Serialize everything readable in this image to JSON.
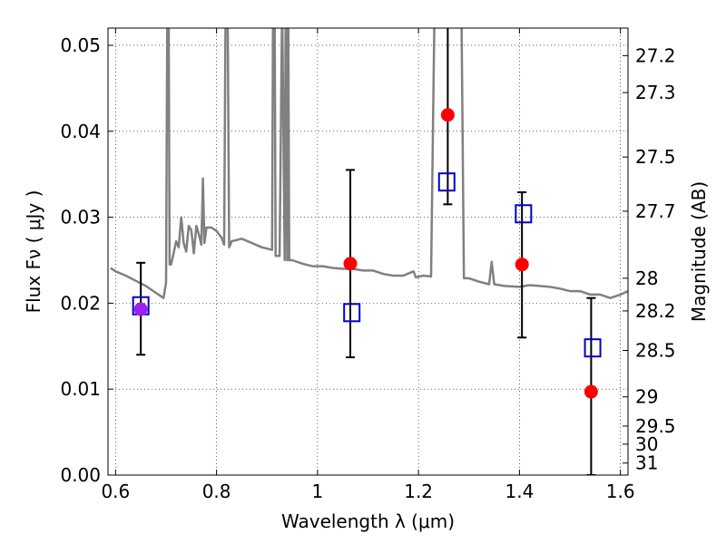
{
  "chart_data": {
    "type": "scatter",
    "xlabel": "Wavelength  λ (μm)",
    "ylabel": "Flux  Fν  ( μJy )",
    "y2label": "Magnitude (AB)",
    "xlim": [
      0.585,
      1.615
    ],
    "ylim": [
      0.0,
      0.052
    ],
    "grid": true,
    "xticks": [
      {
        "v": 0.6,
        "label": "0.6"
      },
      {
        "v": 0.8,
        "label": "0.8"
      },
      {
        "v": 1.0,
        "label": "1"
      },
      {
        "v": 1.2,
        "label": "1.2"
      },
      {
        "v": 1.4,
        "label": "1.4"
      },
      {
        "v": 1.6,
        "label": "1.6"
      }
    ],
    "yticks": [
      {
        "v": 0.0,
        "label": "0.00"
      },
      {
        "v": 0.01,
        "label": "0.01"
      },
      {
        "v": 0.02,
        "label": "0.02"
      },
      {
        "v": 0.03,
        "label": "0.03"
      },
      {
        "v": 0.04,
        "label": "0.04"
      },
      {
        "v": 0.05,
        "label": "0.05"
      }
    ],
    "mag_ticks": [
      {
        "v": 0.0488,
        "label": "27.2"
      },
      {
        "v": 0.0445,
        "label": "27.3"
      },
      {
        "v": 0.037,
        "label": "27.5"
      },
      {
        "v": 0.0307,
        "label": "27.7"
      },
      {
        "v": 0.0229,
        "label": "28"
      },
      {
        "v": 0.0191,
        "label": "28.2"
      },
      {
        "v": 0.0145,
        "label": "28.5"
      },
      {
        "v": 0.0091,
        "label": "29"
      },
      {
        "v": 0.0057,
        "label": "29.5"
      },
      {
        "v": 0.0036,
        "label": "30"
      },
      {
        "v": 0.0014,
        "label": "31"
      }
    ],
    "series": [
      {
        "kind": "model",
        "color": "#808080",
        "points": [
          [
            0.59,
            0.0241
          ],
          [
            0.6,
            0.0237
          ],
          [
            0.62,
            0.0232
          ],
          [
            0.64,
            0.0226
          ],
          [
            0.66,
            0.022
          ],
          [
            0.68,
            0.0212
          ],
          [
            0.695,
            0.0206
          ],
          [
            0.7,
            0.0224
          ],
          [
            0.7025,
            0.055
          ],
          [
            0.705,
            0.055
          ],
          [
            0.707,
            0.0245
          ],
          [
            0.71,
            0.0245
          ],
          [
            0.715,
            0.0258
          ],
          [
            0.72,
            0.0272
          ],
          [
            0.725,
            0.0265
          ],
          [
            0.73,
            0.03
          ],
          [
            0.735,
            0.027
          ],
          [
            0.74,
            0.026
          ],
          [
            0.745,
            0.029
          ],
          [
            0.75,
            0.0285
          ],
          [
            0.755,
            0.0258
          ],
          [
            0.76,
            0.029
          ],
          [
            0.765,
            0.028
          ],
          [
            0.77,
            0.0268
          ],
          [
            0.773,
            0.0345
          ],
          [
            0.776,
            0.027
          ],
          [
            0.78,
            0.0288
          ],
          [
            0.79,
            0.0288
          ],
          [
            0.8,
            0.0284
          ],
          [
            0.81,
            0.0276
          ],
          [
            0.815,
            0.0268
          ],
          [
            0.818,
            0.055
          ],
          [
            0.822,
            0.055
          ],
          [
            0.825,
            0.0265
          ],
          [
            0.83,
            0.0272
          ],
          [
            0.85,
            0.0275
          ],
          [
            0.87,
            0.027
          ],
          [
            0.89,
            0.0265
          ],
          [
            0.91,
            0.0262
          ],
          [
            0.912,
            0.055
          ],
          [
            0.915,
            0.055
          ],
          [
            0.917,
            0.0255
          ],
          [
            0.925,
            0.0255
          ],
          [
            0.93,
            0.055
          ],
          [
            0.935,
            0.025
          ],
          [
            0.937,
            0.055
          ],
          [
            0.94,
            0.025
          ],
          [
            0.942,
            0.055
          ],
          [
            0.944,
            0.025
          ],
          [
            0.95,
            0.025
          ],
          [
            0.97,
            0.0246
          ],
          [
            0.99,
            0.0243
          ],
          [
            1.01,
            0.0243
          ],
          [
            1.03,
            0.0241
          ],
          [
            1.05,
            0.024
          ],
          [
            1.07,
            0.024
          ],
          [
            1.09,
            0.0238
          ],
          [
            1.11,
            0.0238
          ],
          [
            1.13,
            0.0234
          ],
          [
            1.15,
            0.0232
          ],
          [
            1.17,
            0.0232
          ],
          [
            1.19,
            0.0237
          ],
          [
            1.195,
            0.023
          ],
          [
            1.21,
            0.0232
          ],
          [
            1.225,
            0.0231
          ],
          [
            1.232,
            0.055
          ],
          [
            1.285,
            0.055
          ],
          [
            1.29,
            0.0229
          ],
          [
            1.3,
            0.0229
          ],
          [
            1.32,
            0.0225
          ],
          [
            1.34,
            0.0222
          ],
          [
            1.345,
            0.0248
          ],
          [
            1.35,
            0.0222
          ],
          [
            1.37,
            0.022
          ],
          [
            1.4,
            0.0219
          ],
          [
            1.42,
            0.0221
          ],
          [
            1.44,
            0.022
          ],
          [
            1.46,
            0.0219
          ],
          [
            1.48,
            0.0217
          ],
          [
            1.5,
            0.0214
          ],
          [
            1.52,
            0.0214
          ],
          [
            1.54,
            0.021
          ],
          [
            1.56,
            0.021
          ],
          [
            1.58,
            0.0206
          ],
          [
            1.6,
            0.021
          ],
          [
            1.615,
            0.0214
          ]
        ]
      },
      {
        "kind": "observed",
        "marker": "circle",
        "color": "#ff0000",
        "points": [
          {
            "x": 0.65,
            "y": 0.0193,
            "err_lo": 0.014,
            "err_hi": 0.0247
          },
          {
            "x": 1.065,
            "y": 0.0246,
            "err_lo": 0.0137,
            "err_hi": 0.0355
          },
          {
            "x": 1.258,
            "y": 0.0419,
            "err_lo": 0.0315,
            "err_hi": 0.055
          },
          {
            "x": 1.405,
            "y": 0.0245,
            "err_lo": 0.016,
            "err_hi": 0.0329
          },
          {
            "x": 1.542,
            "y": 0.0097,
            "err_lo": 0.0,
            "err_hi": 0.0206
          }
        ]
      },
      {
        "kind": "synthetic",
        "marker": "square-open",
        "color": "#0000cc",
        "points": [
          {
            "x": 0.65,
            "y": 0.0197
          },
          {
            "x": 1.068,
            "y": 0.0189
          },
          {
            "x": 1.256,
            "y": 0.0341
          },
          {
            "x": 1.408,
            "y": 0.0304
          },
          {
            "x": 1.545,
            "y": 0.0148
          }
        ]
      }
    ],
    "overlap_color": "#a020f0"
  }
}
